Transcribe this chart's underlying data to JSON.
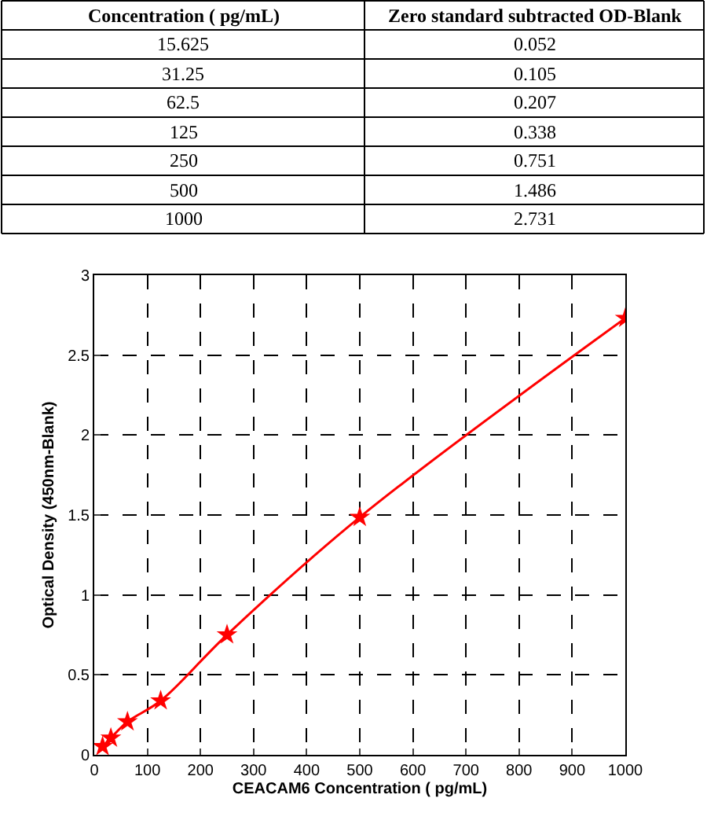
{
  "chart_data": [
    {
      "type": "other",
      "annotations": [
        "Concentration ( pg/mL)",
        "Zero standard subtracted OD-Blank"
      ],
      "categories": [
        "15.625",
        "31.25",
        "62.5",
        "125",
        "250",
        "500",
        "1000"
      ],
      "values": [
        0.052,
        0.105,
        0.207,
        0.338,
        0.751,
        1.486,
        2.731
      ],
      "data_labels": true
    },
    {
      "type": "line",
      "xlabel": "CEACAM6 Concentration ( pg/mL)",
      "ylabel": "Optical Density (450nm-Blank)",
      "x": [
        15.625,
        31.25,
        62.5,
        125,
        250,
        500,
        1000
      ],
      "series": [
        {
          "color": "#ff0000",
          "values": [
            0.052,
            0.105,
            0.207,
            0.338,
            0.751,
            1.486,
            2.731
          ]
        }
      ],
      "xlim": [
        0,
        1000
      ],
      "xticks": [
        0,
        100,
        200,
        300,
        400,
        500,
        600,
        700,
        800,
        900,
        1000
      ],
      "ylim": [
        0,
        3
      ],
      "yticks": [
        0,
        0.5,
        1,
        1.5,
        2,
        2.5,
        3
      ],
      "grid": true,
      "marker": "star",
      "line_style": "solid"
    }
  ]
}
